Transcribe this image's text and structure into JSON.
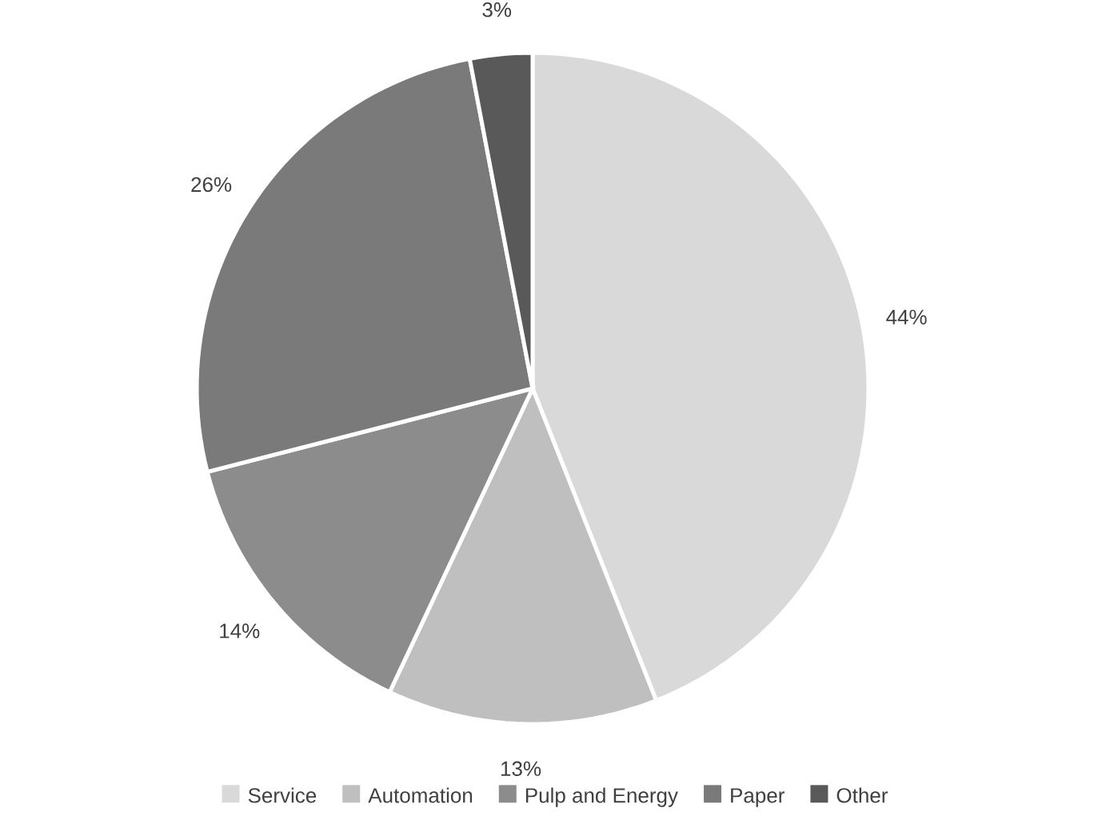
{
  "chart_data": {
    "type": "pie",
    "categories": [
      "Service",
      "Automation",
      "Pulp and Energy",
      "Paper",
      "Other"
    ],
    "values": [
      44,
      13,
      14,
      26,
      3
    ],
    "colors": [
      "#d9d9d9",
      "#bfbfbf",
      "#8c8c8c",
      "#7a7a7a",
      "#595959"
    ],
    "value_labels": [
      "44%",
      "13%",
      "14%",
      "26%",
      "3%"
    ],
    "legend": "bottom"
  }
}
